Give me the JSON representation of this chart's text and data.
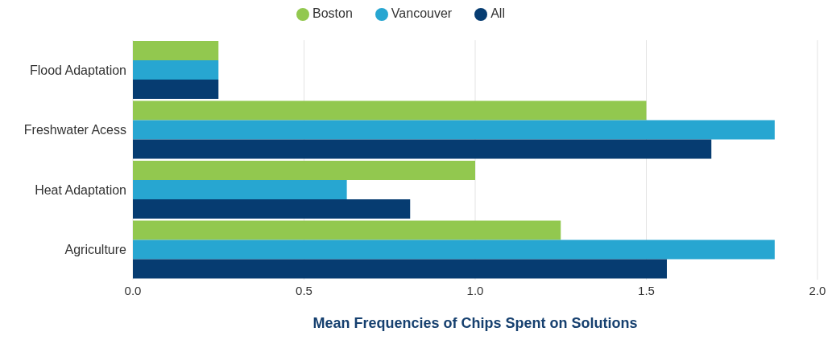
{
  "chart_data": {
    "type": "bar",
    "orientation": "horizontal",
    "xlabel": "Mean Frequencies of Chips Spent on Solutions",
    "categories": [
      "Flood Adaptation",
      "Freshwater Acess",
      "Heat Adaptation",
      "Agriculture"
    ],
    "series": [
      {
        "name": "Boston",
        "color": "#92c84f",
        "values": [
          0.25,
          1.5,
          1.0,
          1.25
        ]
      },
      {
        "name": "Vancouver",
        "color": "#27a6d1",
        "values": [
          0.25,
          1.875,
          0.625,
          1.875
        ]
      },
      {
        "name": "All",
        "color": "#063c71",
        "values": [
          0.25,
          1.69,
          0.81,
          1.56
        ]
      }
    ],
    "xlim": [
      0,
      2
    ],
    "xticks": [
      {
        "value": 0,
        "label": "0.0"
      },
      {
        "value": 0.5,
        "label": "0.5"
      },
      {
        "value": 1,
        "label": "1.0"
      },
      {
        "value": 1.5,
        "label": "1.5"
      },
      {
        "value": 2,
        "label": "2.0"
      }
    ],
    "grid": "x",
    "legend": "top"
  }
}
